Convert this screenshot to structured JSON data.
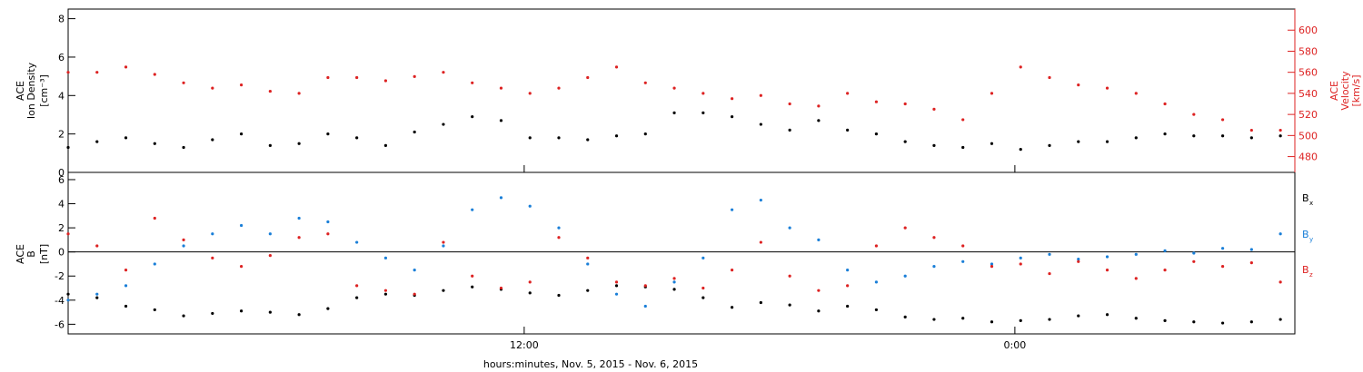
{
  "chart_data": [
    {
      "type": "scatter",
      "ylabel_lines": [
        "ACE",
        "Ion Density",
        "[cm⁻³]"
      ],
      "ylim": [
        0,
        8.5
      ],
      "yticks": [
        "0",
        "2",
        "4",
        "6",
        "8"
      ],
      "ytick_values": [
        0,
        2,
        4,
        6,
        8
      ],
      "right_ylabel_lines": [
        "ACE",
        "Velocity",
        "[km/s]"
      ],
      "right_ylim": [
        465,
        620
      ],
      "right_yticks": [
        "480",
        "500",
        "520",
        "540",
        "560",
        "580",
        "600"
      ],
      "right_ytick_values": [
        480,
        500,
        520,
        540,
        560,
        580,
        600
      ],
      "right_axis_color": "#dd2222",
      "x_range_hours": [
        0,
        42.5
      ],
      "series": [
        {
          "color": "#000000",
          "axis": "left",
          "x": [
            0,
            1,
            2,
            3,
            4,
            5,
            6,
            7,
            8,
            9,
            10,
            11,
            12,
            13,
            14,
            15,
            16,
            17,
            18,
            19,
            20,
            21,
            22,
            23,
            24,
            25,
            26,
            27,
            28,
            29,
            30,
            31,
            32,
            33,
            34,
            35,
            36,
            37,
            38,
            39,
            40,
            41,
            42
          ],
          "values": [
            1.3,
            1.6,
            1.8,
            1.5,
            1.3,
            1.7,
            2.0,
            1.4,
            1.5,
            2.0,
            1.8,
            1.4,
            2.1,
            2.5,
            2.9,
            2.7,
            1.8,
            1.8,
            1.7,
            1.9,
            2.0,
            3.1,
            3.1,
            2.9,
            2.5,
            2.2,
            2.7,
            2.2,
            2.0,
            1.6,
            1.4,
            1.3,
            1.5,
            1.2,
            1.4,
            1.6,
            1.6,
            1.8,
            2.0,
            1.9,
            1.9,
            1.8,
            1.9
          ]
        },
        {
          "color": "#dd2222",
          "axis": "right",
          "x": [
            0,
            1,
            2,
            3,
            4,
            5,
            6,
            7,
            8,
            9,
            10,
            11,
            12,
            13,
            14,
            15,
            16,
            17,
            18,
            19,
            20,
            21,
            22,
            23,
            24,
            25,
            26,
            27,
            28,
            29,
            30,
            31,
            32,
            33,
            34,
            35,
            36,
            37,
            38,
            39,
            40,
            41,
            42
          ],
          "values": [
            560,
            560,
            565,
            558,
            550,
            545,
            548,
            542,
            540,
            555,
            555,
            552,
            556,
            560,
            550,
            545,
            540,
            545,
            555,
            565,
            550,
            545,
            540,
            535,
            538,
            530,
            528,
            540,
            532,
            530,
            525,
            515,
            540,
            565,
            555,
            548,
            545,
            540,
            530,
            520,
            515,
            505,
            505
          ]
        }
      ]
    },
    {
      "type": "scatter",
      "ylabel_lines": [
        "ACE",
        "B",
        "[nT]"
      ],
      "ylim": [
        -6.8,
        6.6
      ],
      "yticks": [
        "-6",
        "-4",
        "-2",
        "0",
        "2",
        "4",
        "6"
      ],
      "ytick_values": [
        -6,
        -4,
        -2,
        0,
        2,
        4,
        6
      ],
      "x_range_hours": [
        0,
        42.5
      ],
      "xticks": [
        "12:00",
        "0:00"
      ],
      "xtick_values": [
        15.8,
        32.8
      ],
      "xlabel": "hours:minutes, Nov.  5, 2015 - Nov.  6, 2015",
      "legend": [
        {
          "label": "B",
          "sub": "x",
          "color": "#000000"
        },
        {
          "label": "B",
          "sub": "y",
          "color": "#1a7fd8"
        },
        {
          "label": "B",
          "sub": "z",
          "color": "#dd2222"
        }
      ],
      "series": [
        {
          "color": "#000000",
          "x": [
            0,
            1,
            2,
            3,
            4,
            5,
            6,
            7,
            8,
            9,
            10,
            11,
            12,
            13,
            14,
            15,
            16,
            17,
            18,
            19,
            20,
            21,
            22,
            23,
            24,
            25,
            26,
            27,
            28,
            29,
            30,
            31,
            32,
            33,
            34,
            35,
            36,
            37,
            38,
            39,
            40,
            41,
            42
          ],
          "values": [
            -3.5,
            -3.8,
            -4.5,
            -4.8,
            -5.3,
            -5.1,
            -4.9,
            -5.0,
            -5.2,
            -4.7,
            -3.8,
            -3.5,
            -3.6,
            -3.2,
            -2.9,
            -3.1,
            -3.4,
            -3.6,
            -3.2,
            -2.8,
            -2.9,
            -3.1,
            -3.8,
            -4.6,
            -4.2,
            -4.4,
            -4.9,
            -4.5,
            -4.8,
            -5.4,
            -5.6,
            -5.5,
            -5.8,
            -5.7,
            -5.6,
            -5.3,
            -5.2,
            -5.5,
            -5.7,
            -5.8,
            -5.9,
            -5.8,
            -5.6
          ]
        },
        {
          "color": "#1a7fd8",
          "x": [
            0,
            1,
            2,
            3,
            4,
            5,
            6,
            7,
            8,
            9,
            10,
            11,
            12,
            13,
            14,
            15,
            16,
            17,
            18,
            19,
            20,
            21,
            22,
            23,
            24,
            25,
            26,
            27,
            28,
            29,
            30,
            31,
            32,
            33,
            34,
            35,
            36,
            37,
            38,
            39,
            40,
            41,
            42
          ],
          "values": [
            -4.0,
            -3.5,
            -2.8,
            -1.0,
            0.5,
            1.5,
            2.2,
            1.5,
            2.8,
            2.5,
            0.8,
            -0.5,
            -1.5,
            0.5,
            3.5,
            4.5,
            3.8,
            2.0,
            -1.0,
            -3.5,
            -4.5,
            -2.5,
            -0.5,
            3.5,
            4.3,
            2.0,
            1.0,
            -1.5,
            -2.5,
            -2.0,
            -1.2,
            -0.8,
            -1.0,
            -0.5,
            -0.2,
            -0.6,
            -0.4,
            -0.2,
            0.1,
            -0.1,
            0.3,
            0.2,
            1.5
          ]
        },
        {
          "color": "#dd2222",
          "x": [
            0,
            1,
            2,
            3,
            4,
            5,
            6,
            7,
            8,
            9,
            10,
            11,
            12,
            13,
            14,
            15,
            16,
            17,
            18,
            19,
            20,
            21,
            22,
            23,
            24,
            25,
            26,
            27,
            28,
            29,
            30,
            31,
            32,
            33,
            34,
            35,
            36,
            37,
            38,
            39,
            40,
            41,
            42
          ],
          "values": [
            1.5,
            0.5,
            -1.5,
            2.8,
            1.0,
            -0.5,
            -1.2,
            -0.3,
            1.2,
            1.5,
            -2.8,
            -3.2,
            -3.5,
            0.8,
            -2.0,
            -3.0,
            -2.5,
            1.2,
            -0.5,
            -2.5,
            -2.8,
            -2.2,
            -3.0,
            -1.5,
            0.8,
            -2.0,
            -3.2,
            -2.8,
            0.5,
            2.0,
            1.2,
            0.5,
            -1.2,
            -1.0,
            -1.8,
            -0.8,
            -1.5,
            -2.2,
            -1.5,
            -0.8,
            -1.2,
            -0.9,
            -2.5
          ]
        }
      ]
    }
  ]
}
